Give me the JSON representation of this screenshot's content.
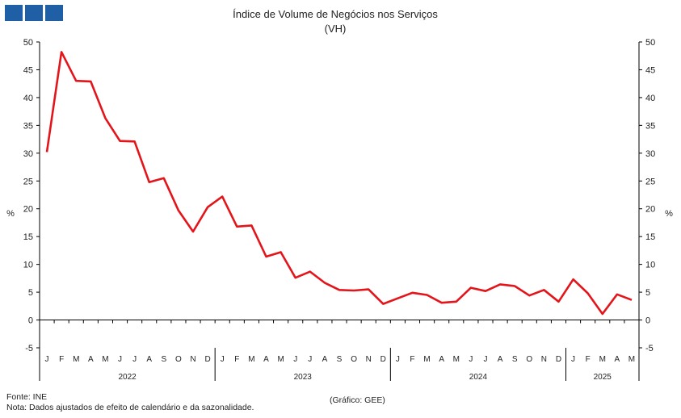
{
  "logo": {
    "icon": "institution-logo-icon",
    "color": "#1f5fa6"
  },
  "footer": {
    "source": "Fonte: INE",
    "note": "Nota: Dados ajustados de efeito de calendário e da sazonalidade.",
    "credit": "(Gráfico: GEE)"
  },
  "chart_data": {
    "type": "line",
    "title": "Índice de Volume de Negócios nos Serviços",
    "subtitle": "(VH)",
    "ylabel": "%",
    "ylabel_right": "%",
    "ylim": [
      -5,
      50
    ],
    "yticks": [
      -5,
      0,
      5,
      10,
      15,
      20,
      25,
      30,
      35,
      40,
      45,
      50
    ],
    "grid": false,
    "line_color": "#e3151a",
    "months": [
      "J",
      "F",
      "M",
      "A",
      "M",
      "J",
      "J",
      "A",
      "S",
      "O",
      "N",
      "D",
      "J",
      "F",
      "M",
      "A",
      "M",
      "J",
      "J",
      "A",
      "S",
      "O",
      "N",
      "D",
      "J",
      "F",
      "M",
      "A",
      "M",
      "J",
      "J",
      "A",
      "S",
      "O",
      "N",
      "D",
      "J",
      "F",
      "M",
      "A",
      "M"
    ],
    "years": [
      {
        "label": "2022",
        "months": 12
      },
      {
        "label": "2023",
        "months": 12
      },
      {
        "label": "2024",
        "months": 12
      },
      {
        "label": "2025",
        "months": 5
      }
    ],
    "series": [
      {
        "values": [
          30.2,
          48.2,
          43.0,
          42.9,
          36.3,
          32.2,
          32.1,
          24.8,
          25.5,
          19.7,
          15.9,
          20.3,
          22.2,
          16.8,
          17.0,
          11.4,
          12.2,
          7.6,
          8.7,
          6.7,
          5.4,
          5.3,
          5.5,
          2.9,
          3.9,
          4.9,
          4.5,
          3.1,
          3.3,
          5.8,
          5.2,
          6.4,
          6.1,
          4.4,
          5.4,
          3.3,
          7.3,
          4.8,
          1.1,
          4.6,
          3.6
        ]
      }
    ]
  }
}
